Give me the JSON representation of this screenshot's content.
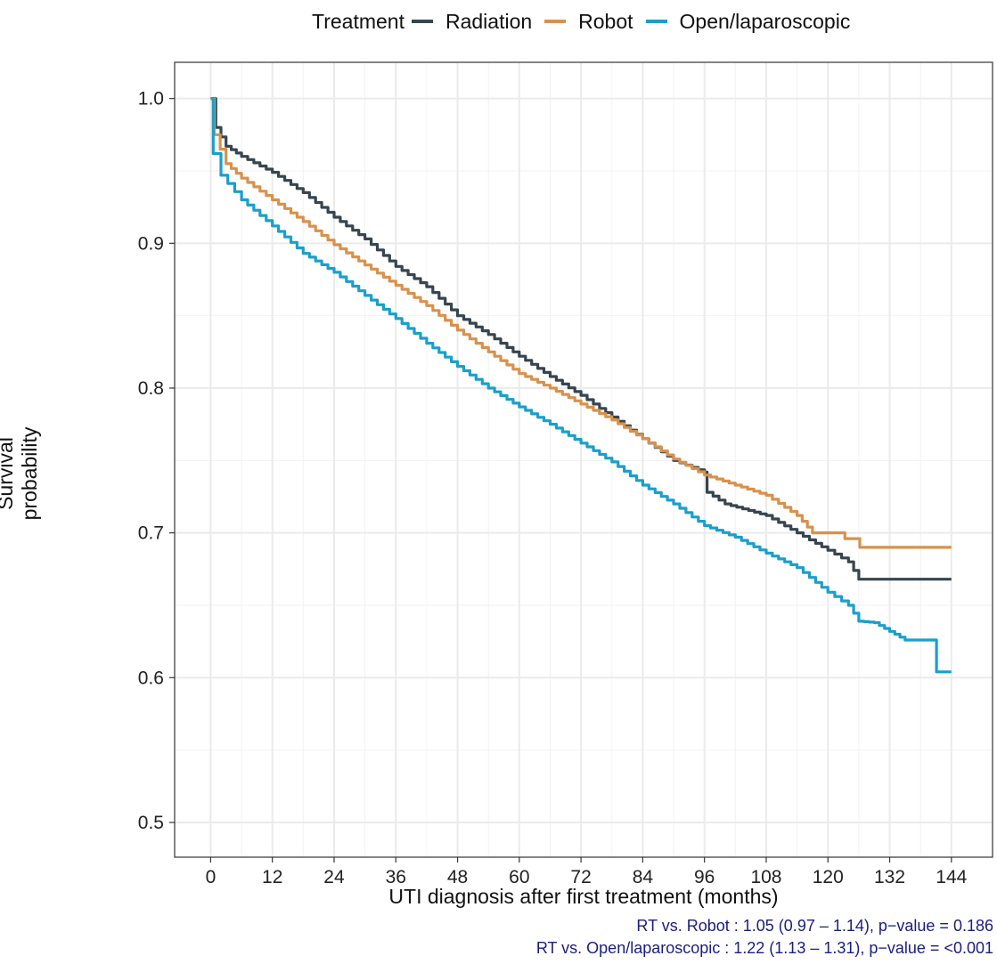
{
  "chart_data": {
    "type": "line",
    "subtype": "kaplan-meier step",
    "title": "",
    "xlabel": "UTI diagnosis after first treatment (months)",
    "ylabel": "Survival probability",
    "xlim": [
      -7,
      152
    ],
    "ylim": [
      0.476,
      1.025
    ],
    "xticks": [
      0,
      12,
      24,
      36,
      48,
      60,
      72,
      84,
      96,
      108,
      120,
      132,
      144
    ],
    "yticks": [
      0.5,
      0.6,
      0.7,
      0.8,
      0.9,
      1.0
    ],
    "ytick_labels": [
      "0.5",
      "0.6",
      "0.7",
      "0.8",
      "0.9",
      "1.0"
    ],
    "grid": true,
    "legend": {
      "title": "Treatment",
      "position": "top",
      "entries": [
        "Radiation",
        "Robot",
        "Open/laparoscopic"
      ]
    },
    "series": [
      {
        "name": "Radiation",
        "color": "#36454f",
        "points": [
          [
            0,
            1.0
          ],
          [
            1,
            0.98
          ],
          [
            3,
            0.967
          ],
          [
            6,
            0.96
          ],
          [
            12,
            0.949
          ],
          [
            18,
            0.935
          ],
          [
            24,
            0.918
          ],
          [
            30,
            0.903
          ],
          [
            36,
            0.884
          ],
          [
            42,
            0.87
          ],
          [
            48,
            0.85
          ],
          [
            54,
            0.837
          ],
          [
            60,
            0.822
          ],
          [
            66,
            0.808
          ],
          [
            72,
            0.795
          ],
          [
            78,
            0.78
          ],
          [
            84,
            0.765
          ],
          [
            90,
            0.75
          ],
          [
            96,
            0.742
          ],
          [
            96.5,
            0.728
          ],
          [
            100,
            0.72
          ],
          [
            108,
            0.712
          ],
          [
            114,
            0.7
          ],
          [
            120,
            0.688
          ],
          [
            124,
            0.68
          ],
          [
            126,
            0.668
          ],
          [
            144,
            0.668
          ]
        ]
      },
      {
        "name": "Robot",
        "color": "#d8914c",
        "points": [
          [
            0,
            1.0
          ],
          [
            0.7,
            0.975
          ],
          [
            3,
            0.955
          ],
          [
            6,
            0.945
          ],
          [
            12,
            0.93
          ],
          [
            18,
            0.915
          ],
          [
            24,
            0.899
          ],
          [
            30,
            0.885
          ],
          [
            36,
            0.871
          ],
          [
            42,
            0.857
          ],
          [
            48,
            0.84
          ],
          [
            54,
            0.825
          ],
          [
            60,
            0.81
          ],
          [
            66,
            0.8
          ],
          [
            72,
            0.789
          ],
          [
            78,
            0.778
          ],
          [
            84,
            0.765
          ],
          [
            90,
            0.751
          ],
          [
            96,
            0.74
          ],
          [
            102,
            0.733
          ],
          [
            108,
            0.726
          ],
          [
            114,
            0.712
          ],
          [
            117,
            0.7
          ],
          [
            123,
            0.7
          ],
          [
            123.3,
            0.696
          ],
          [
            126,
            0.696
          ],
          [
            126.2,
            0.69
          ],
          [
            144,
            0.69
          ]
        ]
      },
      {
        "name": "Open/laparoscopic",
        "color": "#1a9fcb",
        "points": [
          [
            0,
            1.0
          ],
          [
            0.5,
            0.962
          ],
          [
            2,
            0.947
          ],
          [
            6,
            0.93
          ],
          [
            12,
            0.912
          ],
          [
            18,
            0.893
          ],
          [
            24,
            0.88
          ],
          [
            30,
            0.864
          ],
          [
            36,
            0.848
          ],
          [
            42,
            0.831
          ],
          [
            48,
            0.815
          ],
          [
            54,
            0.8
          ],
          [
            60,
            0.787
          ],
          [
            66,
            0.775
          ],
          [
            72,
            0.762
          ],
          [
            78,
            0.749
          ],
          [
            84,
            0.733
          ],
          [
            90,
            0.72
          ],
          [
            96,
            0.705
          ],
          [
            102,
            0.697
          ],
          [
            108,
            0.686
          ],
          [
            114,
            0.676
          ],
          [
            120,
            0.659
          ],
          [
            124,
            0.65
          ],
          [
            126,
            0.639
          ],
          [
            129,
            0.638
          ],
          [
            132,
            0.632
          ],
          [
            135,
            0.626
          ],
          [
            141,
            0.626
          ],
          [
            141.1,
            0.604
          ],
          [
            144,
            0.604
          ]
        ]
      }
    ],
    "annotations": [
      "RT vs. Robot : 1.05 (0.97 – 1.14), p−value = 0.186",
      "RT vs. Open/laparoscopic : 1.22 (1.13 – 1.31), p−value = <0.001"
    ]
  }
}
